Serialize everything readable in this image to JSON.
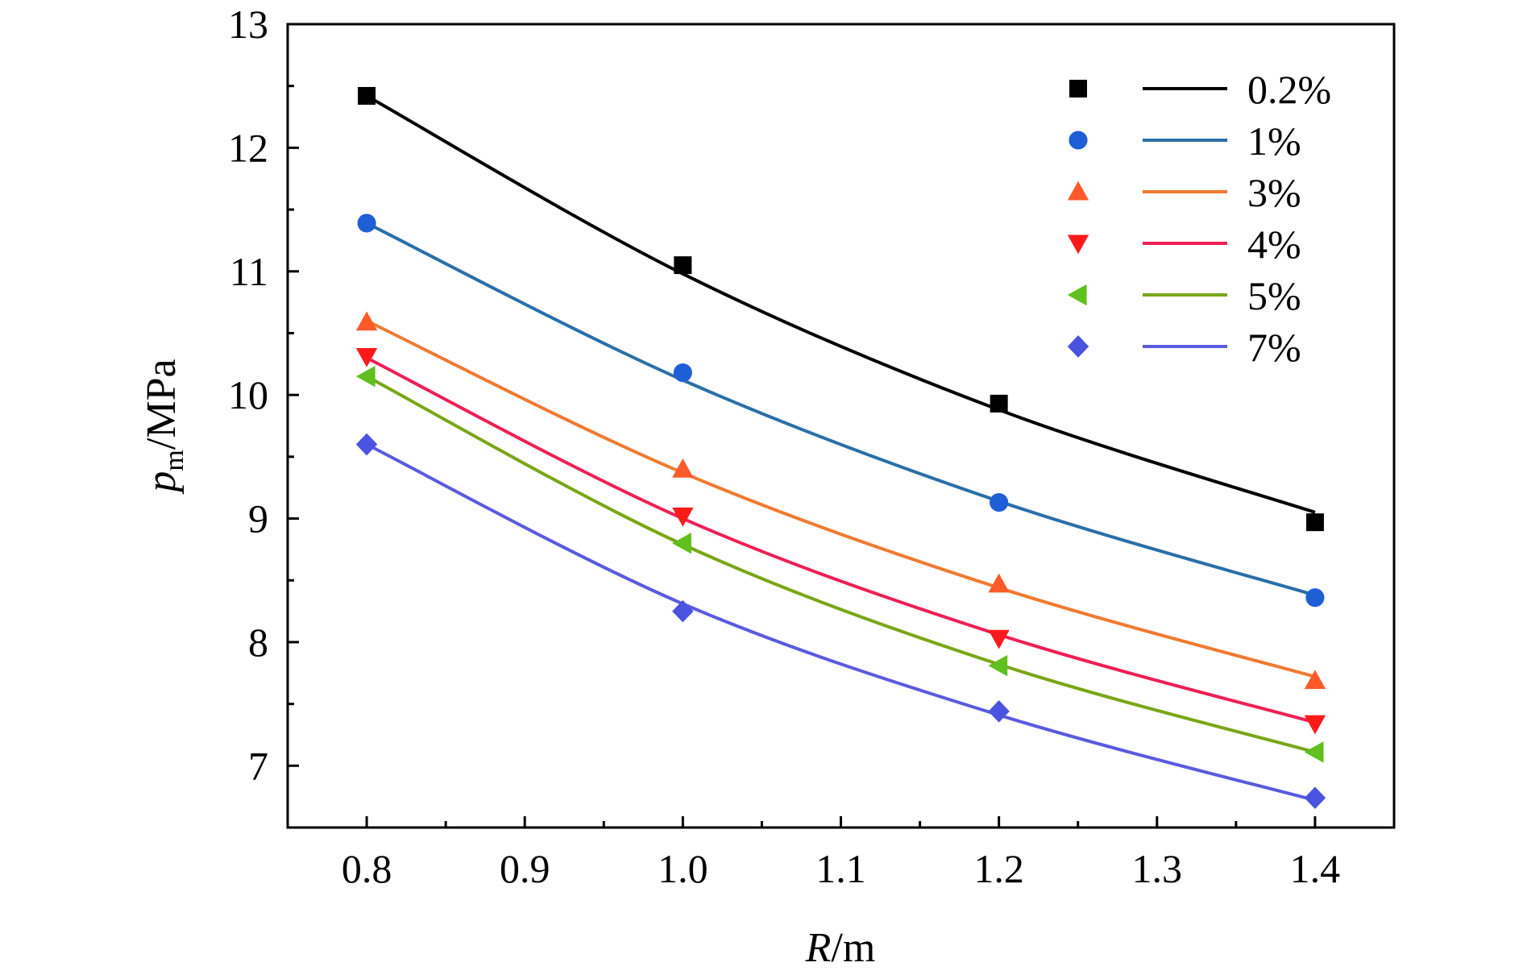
{
  "chart_data": {
    "type": "line",
    "xlabel": {
      "var": "R",
      "unit": "/m"
    },
    "ylabel": {
      "var": "p",
      "sub": "m",
      "unit": "/MPa"
    },
    "xlim": [
      0.75,
      1.45
    ],
    "ylim": [
      6.5,
      13
    ],
    "x_ticks": [
      "0.8",
      "0.9",
      "1.0",
      "1.1",
      "1.2",
      "1.3",
      "1.4"
    ],
    "y_ticks": [
      "7",
      "8",
      "9",
      "10",
      "11",
      "12",
      "13"
    ],
    "x_tick_values": [
      0.8,
      0.9,
      1.0,
      1.1,
      1.2,
      1.3,
      1.4
    ],
    "y_tick_values": [
      7,
      8,
      9,
      10,
      11,
      12,
      13
    ],
    "x_minor_ticks": [
      0.85,
      0.95,
      1.05,
      1.15,
      1.25,
      1.35
    ],
    "y_minor_ticks": [
      7.5,
      8.5,
      9.5,
      10.5,
      11.5,
      12.5
    ],
    "grid": false,
    "legend_position": "top-right",
    "x": [
      0.8,
      1.0,
      1.2,
      1.4
    ],
    "series": [
      {
        "name": "0.2%",
        "marker": "square",
        "marker_color": "#000000",
        "line_color": "#000000",
        "values": [
          12.42,
          11.05,
          9.93,
          8.97
        ],
        "fit": [
          12.42,
          10.98,
          9.88,
          9.05
        ]
      },
      {
        "name": "1%",
        "marker": "circle",
        "marker_color": "#1f5fd6",
        "line_color": "#2a6fa8",
        "values": [
          11.39,
          10.18,
          9.13,
          8.36
        ],
        "fit": [
          11.39,
          10.12,
          9.14,
          8.38
        ]
      },
      {
        "name": "3%",
        "marker": "triangle-up",
        "marker_color": "#ff5a2a",
        "line_color": "#f07a30",
        "values": [
          10.59,
          9.4,
          8.47,
          7.69
        ],
        "fit": [
          10.6,
          9.37,
          8.44,
          7.72
        ]
      },
      {
        "name": "4%",
        "marker": "triangle-down",
        "marker_color": "#ff1a1a",
        "line_color": "#ee1f55",
        "values": [
          10.31,
          9.02,
          8.03,
          7.34
        ],
        "fit": [
          10.3,
          9.0,
          8.06,
          7.35
        ]
      },
      {
        "name": "5%",
        "marker": "triangle-left",
        "marker_color": "#5fc01e",
        "line_color": "#7aa616",
        "values": [
          10.15,
          8.8,
          7.81,
          7.11
        ],
        "fit": [
          10.15,
          8.79,
          7.82,
          7.11
        ]
      },
      {
        "name": "7%",
        "marker": "diamond",
        "marker_color": "#4a52e0",
        "line_color": "#5a5ae0",
        "values": [
          9.6,
          8.25,
          7.44,
          6.74
        ],
        "fit": [
          9.6,
          8.31,
          7.41,
          6.72
        ]
      }
    ]
  }
}
